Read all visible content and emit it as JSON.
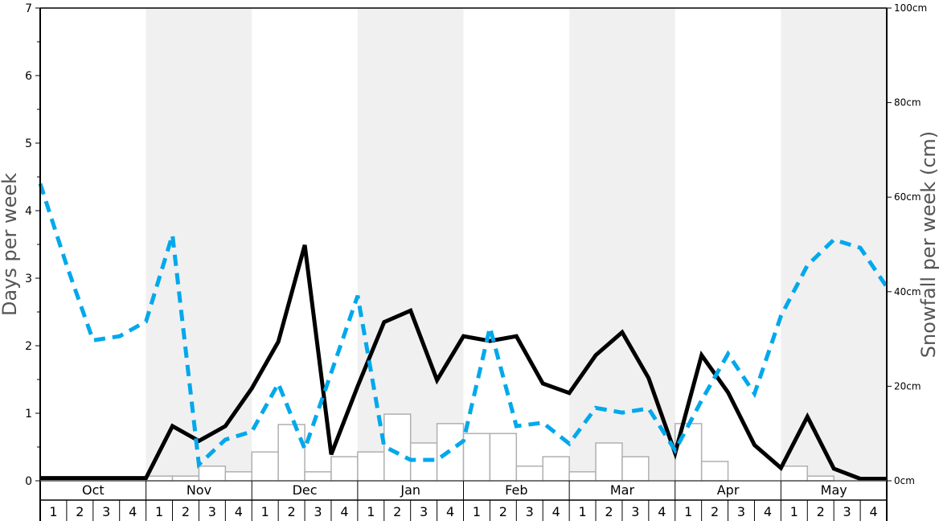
{
  "chart_data": {
    "type": "line",
    "title": "",
    "ylabel": "Days per week",
    "y2label": "Snowfall per week (cm)",
    "ylim": [
      0,
      7
    ],
    "y2lim": [
      0,
      100
    ],
    "yticks": [
      "0",
      "1",
      "2",
      "3",
      "4",
      "5",
      "6",
      "7"
    ],
    "y2ticks": [
      "0cm",
      "20cm",
      "40cm",
      "60cm",
      "80cm",
      "100cm"
    ],
    "y2tick_values": [
      0,
      20,
      40,
      60,
      80,
      100
    ],
    "months": [
      "Oct",
      "Nov",
      "Dec",
      "Jan",
      "Feb",
      "Mar",
      "Apr",
      "May"
    ],
    "weeks": [
      "1",
      "2",
      "3",
      "4"
    ],
    "shaded_months": [
      "Nov",
      "Jan",
      "Mar",
      "May"
    ],
    "colors": {
      "black_line": "#000000",
      "blue_dashed": "#00a8ec",
      "bars_fill": "#ffffff",
      "bars_stroke": "#b0b0b0",
      "shade": "#f0f0f0"
    },
    "series": [
      {
        "style": "solid-black",
        "axis": "left",
        "values": [
          0.04,
          0.04,
          0.04,
          0.04,
          0.04,
          0.81,
          0.59,
          0.81,
          1.37,
          2.06,
          3.49,
          0.39,
          1.4,
          2.35,
          2.52,
          1.49,
          2.14,
          2.07,
          2.14,
          1.44,
          1.3,
          1.86,
          2.2,
          1.52,
          0.41,
          1.86,
          1.31,
          0.53,
          0.19,
          0.95,
          0.18,
          0.03,
          0.03
        ]
      },
      {
        "style": "dashed-blue",
        "axis": "left",
        "values": [
          4.4,
          3.19,
          2.08,
          2.14,
          2.36,
          3.64,
          0.24,
          0.61,
          0.73,
          1.44,
          0.47,
          1.6,
          2.74,
          0.51,
          0.31,
          0.31,
          0.59,
          2.27,
          0.81,
          0.86,
          0.55,
          1.08,
          1.01,
          1.07,
          0.45,
          1.19,
          1.88,
          1.29,
          2.44,
          3.19,
          3.57,
          3.45,
          2.87
        ]
      },
      {
        "style": "bars",
        "axis": "right",
        "unit": "cm",
        "values": [
          0,
          0,
          0,
          0,
          1.0,
          1.0,
          3.1,
          1.9,
          6.1,
          11.9,
          1.9,
          5.1,
          6.1,
          14.1,
          8.0,
          12.1,
          10.0,
          10.0,
          3.1,
          5.1,
          1.9,
          8.0,
          5.1,
          0,
          12.1,
          4.1,
          0,
          0,
          3.1,
          1.0,
          0,
          0
        ]
      }
    ]
  }
}
